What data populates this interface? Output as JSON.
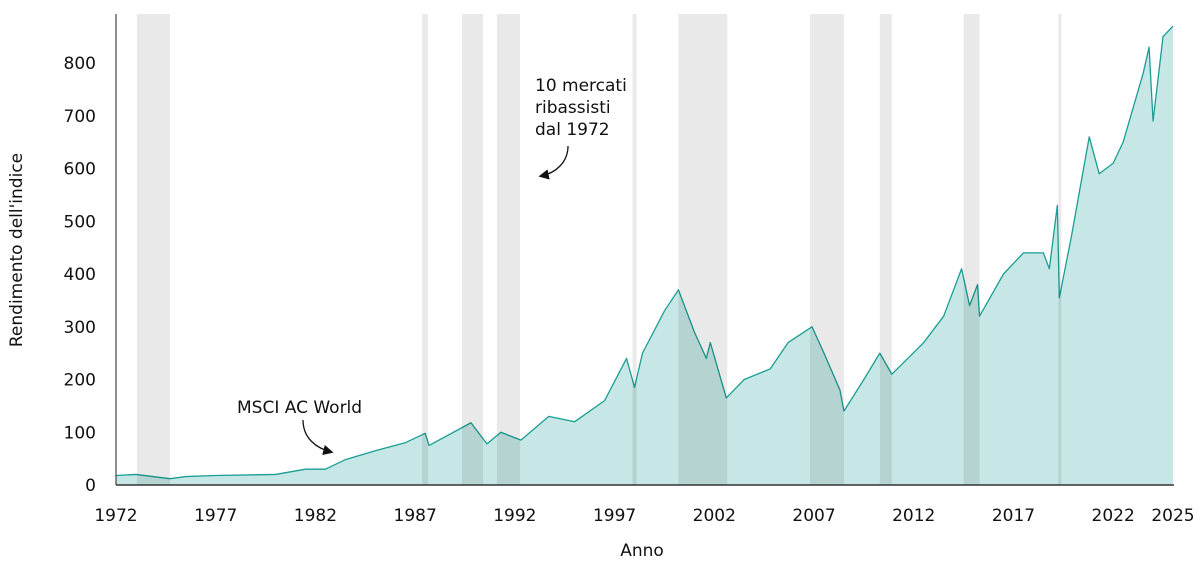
{
  "chart_data": {
    "type": "area",
    "title": "",
    "xlabel": "Anno",
    "ylabel": "Rendimento dell'indice",
    "xlim": [
      1972,
      2025
    ],
    "ylim": [
      0,
      890
    ],
    "x_ticks": [
      1972,
      1977,
      1982,
      1987,
      1992,
      1997,
      2002,
      2007,
      2012,
      2017,
      2022,
      2025
    ],
    "y_ticks": [
      0,
      100,
      200,
      300,
      400,
      500,
      600,
      700,
      800
    ],
    "grid": false,
    "colors": {
      "line": "#1a9e94",
      "fill": "#c6e7e5",
      "bear_shading": "#e9e9e9"
    },
    "series": [
      {
        "name": "MSCI AC World",
        "x": [
          1972,
          1973,
          1974.7,
          1975.5,
          1977,
          1980,
          1981.5,
          1982.5,
          1983.5,
          1985,
          1986.5,
          1987.5,
          1987.7,
          1989.8,
          1990.6,
          1991.3,
          1992.3,
          1993.7,
          1995,
          1996.5,
          1997.6,
          1998.0,
          1998.4,
          1999.5,
          2000.2,
          2001,
          2001.6,
          2001.8,
          2002.6,
          2003.5,
          2004.8,
          2005.7,
          2006.5,
          2006.9,
          2007.5,
          2008.3,
          2008.5,
          2009.5,
          2010.3,
          2010.9,
          2011.7,
          2012.5,
          2013.5,
          2014.4,
          2014.8,
          2015.2,
          2015.3,
          2016.5,
          2017.5,
          2018.5,
          2018.8,
          2019.2,
          2019.3,
          2019.9,
          2020.8,
          2021.3,
          2022,
          2022.5,
          2023.5,
          2023.8,
          2024.0,
          2024.5,
          2025
        ],
        "values": [
          18,
          20,
          12,
          16,
          18,
          20,
          30,
          30,
          48,
          65,
          80,
          98,
          75,
          118,
          78,
          100,
          85,
          130,
          120,
          160,
          240,
          185,
          250,
          330,
          370,
          290,
          240,
          270,
          165,
          200,
          220,
          270,
          290,
          300,
          250,
          180,
          140,
          200,
          250,
          210,
          240,
          270,
          320,
          410,
          340,
          380,
          320,
          400,
          440,
          440,
          410,
          530,
          355,
          470,
          660,
          590,
          610,
          650,
          780,
          830,
          690,
          850,
          870
        ]
      }
    ],
    "bear_markets": [
      [
        1973.05,
        1974.71
      ],
      [
        1987.35,
        1987.65
      ],
      [
        1989.35,
        1990.4
      ],
      [
        1991.1,
        1992.26
      ],
      [
        1997.9,
        1998.1
      ],
      [
        2000.2,
        2002.65
      ],
      [
        2006.8,
        2008.5
      ],
      [
        2010.3,
        2010.9
      ],
      [
        2014.5,
        2015.3
      ],
      [
        2019.25,
        2019.4
      ]
    ],
    "annotations": {
      "series_label": "MSCI AC World",
      "bear_label": [
        "10 mercati",
        "ribassisti",
        "dal 1972"
      ]
    }
  }
}
